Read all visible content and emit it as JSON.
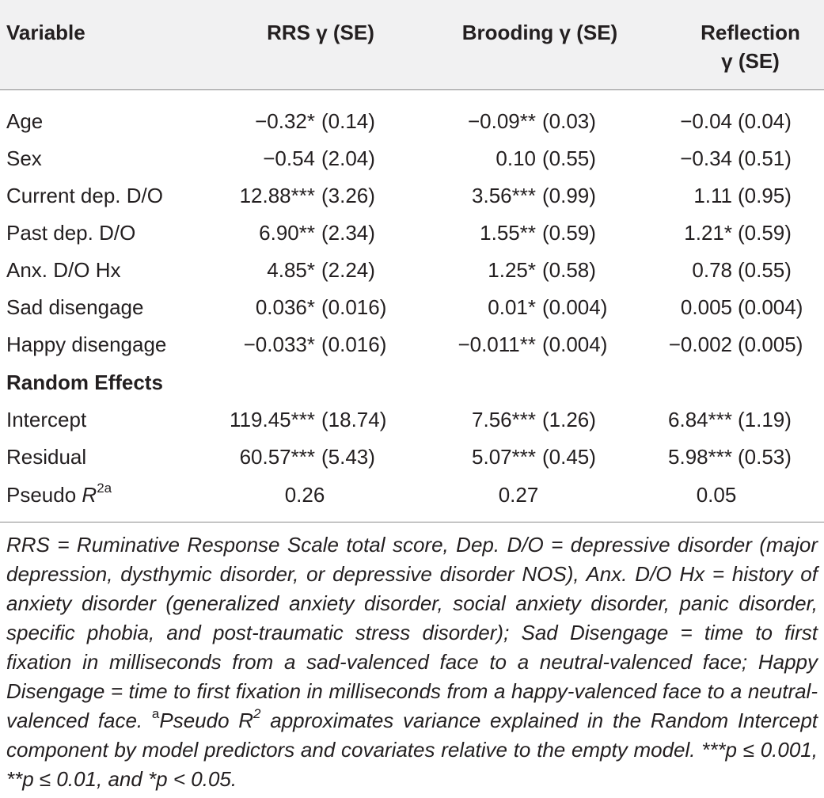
{
  "table": {
    "headers": {
      "variable": "Variable",
      "rrs": "RRS γ (SE)",
      "brooding": "Brooding γ (SE)",
      "reflection_line1": "Reflection",
      "reflection_line2": "γ (SE)"
    },
    "fixed_rows": [
      {
        "label": "Age",
        "rrs": "−0.32*",
        "rrs_se": "(0.14)",
        "brooding": "−0.09**",
        "brooding_se": "(0.03)",
        "reflection": "−0.04",
        "reflection_se": "(0.04)"
      },
      {
        "label": "Sex",
        "rrs": "−0.54",
        "rrs_se": "(2.04)",
        "brooding": "0.10",
        "brooding_se": "(0.55)",
        "reflection": "−0.34",
        "reflection_se": "(0.51)"
      },
      {
        "label": "Current dep. D/O",
        "rrs": "12.88***",
        "rrs_se": "(3.26)",
        "brooding": "3.56***",
        "brooding_se": "(0.99)",
        "reflection": "1.11",
        "reflection_se": "(0.95)"
      },
      {
        "label": "Past dep. D/O",
        "rrs": "6.90**",
        "rrs_se": "(2.34)",
        "brooding": "1.55**",
        "brooding_se": "(0.59)",
        "reflection": "1.21*",
        "reflection_se": "(0.59)"
      },
      {
        "label": "Anx. D/O Hx",
        "rrs": "4.85*",
        "rrs_se": "(2.24)",
        "brooding": "1.25*",
        "brooding_se": "(0.58)",
        "reflection": "0.78",
        "reflection_se": "(0.55)"
      },
      {
        "label": "Sad disengage",
        "rrs": "0.036*",
        "rrs_se": "(0.016)",
        "brooding": "0.01*",
        "brooding_se": "(0.004)",
        "reflection": "0.005",
        "reflection_se": "(0.004)"
      },
      {
        "label": "Happy disengage",
        "rrs": "−0.033*",
        "rrs_se": "(0.016)",
        "brooding": "−0.011**",
        "brooding_se": "(0.004)",
        "reflection": "−0.002",
        "reflection_se": "(0.005)"
      }
    ],
    "random_effects_heading": "Random Effects",
    "random_rows": [
      {
        "label": "Intercept",
        "rrs": "119.45***",
        "rrs_se": "(18.74)",
        "brooding": "7.56***",
        "brooding_se": "(1.26)",
        "reflection": "6.84***",
        "reflection_se": "(1.19)"
      },
      {
        "label": "Residual",
        "rrs": "60.57***",
        "rrs_se": "(5.43)",
        "brooding": "5.07***",
        "brooding_se": "(0.45)",
        "reflection": "5.98***",
        "reflection_se": "(0.53)"
      }
    ],
    "pseudo_row": {
      "label_prefix": "Pseudo ",
      "label_var": "R",
      "label_sup": "2a",
      "rrs": "0.26",
      "brooding": "0.27",
      "reflection": "0.05"
    }
  },
  "notes": {
    "main": "RRS = Ruminative Response Scale total score, Dep. D/O = depressive disorder (major depression, dysthymic disorder, or depressive disorder NOS), Anx. D/O Hx = history of anxiety disorder (generalized anxiety disorder, social anxiety disorder, panic disorder, specific phobia, and post-traumatic stress disorder); Sad Disengage = time to first fixation in milliseconds from a sad-valenced face to a neutral-valenced face; Happy Disengage = time to first fixation in milliseconds from a happy-valenced face to a neutral-valenced face.",
    "footnote_marker": "a",
    "footnote_text_1": "Pseudo R",
    "footnote_sup": "2",
    "footnote_text_2": " approximates variance explained in the Random Intercept component by model predictors and covariates relative to the empty model. ***p ≤ 0.001, **p ≤ 0.01, and *p < 0.05."
  }
}
